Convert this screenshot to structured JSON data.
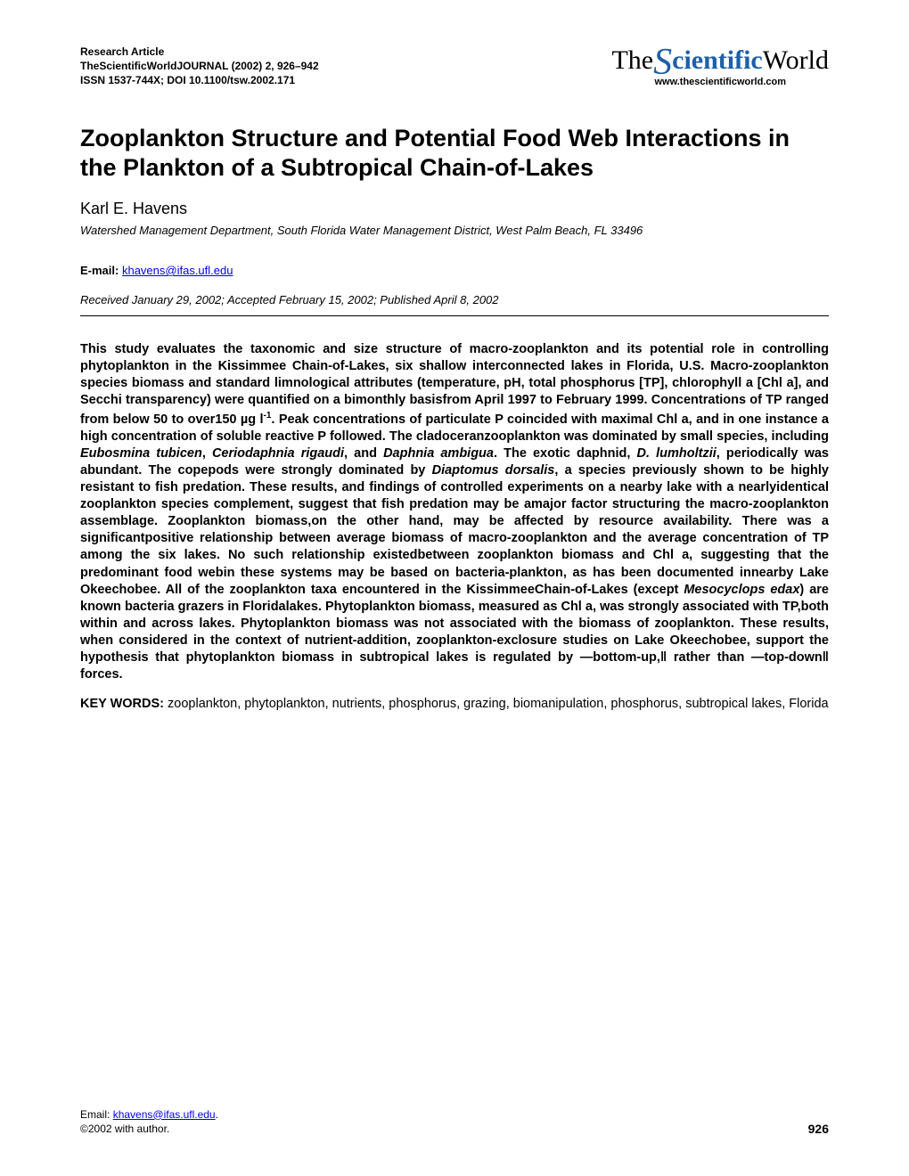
{
  "colors": {
    "text": "#000000",
    "link": "#0000ee",
    "logo_blue": "#1e5fa8",
    "background": "#ffffff"
  },
  "typography": {
    "body_family": "Arial, Helvetica, sans-serif",
    "title_size_pt": 20,
    "author_size_pt": 14,
    "body_size_pt": 11,
    "header_size_pt": 9
  },
  "header": {
    "article_type": "Research Article",
    "journal_line": "TheScientificWorldJOURNAL  (2002) 2, 926–942",
    "issn_line": "ISSN 1537-744X; DOI 10.1100/tsw.2002.171"
  },
  "logo": {
    "prefix": "The",
    "swash": "S",
    "mid": "cientific",
    "suffix": "World",
    "url": "www.thescientificworld.com"
  },
  "title": "Zooplankton Structure and Potential Food Web Interactions in the Plankton of a Subtropical Chain-of-Lakes",
  "author": "Karl E. Havens",
  "affiliation": "Watershed Management Department, South Florida Water Management District, West Palm Beach, FL 33496",
  "email": {
    "label": "E-mail: ",
    "address": "khavens@ifas.ufl.edu"
  },
  "dates": "Received January 29, 2002; Accepted February 15, 2002; Published April 8, 2002",
  "abstract": {
    "p1a": "This study evaluates the taxonomic and size structure of macro-zooplankton and its potential role in controlling phytoplankton in the Kissimmee Chain-of-Lakes, six shallow interconnected lakes in Florida, U.S. Macro-zooplankton species biomass and standard limnological attributes (temperature, pH, total phosphorus [TP], chlorophyll a [Chl a], and Secchi transparency) were quantified on a bimonthly basisfrom April 1997 to February 1999. Concentrations of TP ranged from below 50 to over150 µg l",
    "sup": "-1",
    "p1b": ". Peak concentrations of particulate P coincided with maximal Chl a, and in one instance a high concentration of soluble reactive P followed. The cladoceranzooplankton was dominated by small species, including ",
    "sp1": "Eubosmina tubicen",
    "c1": ", ",
    "sp2": "Ceriodaphnia rigaudi",
    "c2": ", and ",
    "sp3": "Daphnia ambigua",
    "p1c": ". The exotic daphnid, ",
    "sp4": "D. lumholtzii",
    "p1d": ", periodically was abundant. The copepods were strongly dominated by ",
    "sp5": "Diaptomus dorsalis",
    "p1e": ", a species previously shown to be highly resistant to fish predation. These results, and findings of controlled experiments on a nearby lake with a nearlyidentical zooplankton species complement, suggest that fish predation may be amajor factor structuring the macro-zooplankton assemblage. Zooplankton biomass,on the other hand, may be affected by resource availability. There was a significantpositive relationship between average biomass of macro-zooplankton and the average concentration of TP among the six lakes. No such relationship existedbetween zooplankton biomass and Chl a, suggesting that the predominant food webin these systems may be based on bacteria-plankton, as has been documented innearby Lake Okeechobee. All of the zooplankton taxa encountered in the KissimmeeChain-of-Lakes (except ",
    "sp6": "Mesocyclops edax",
    "p1f": ") are known bacteria grazers in Floridalakes. Phytoplankton biomass, measured as Chl a, was strongly associated with TP,both within and across lakes. Phytoplankton biomass was not associated with the biomass of zooplankton. These results, when considered in the context of nutrient-addition, zooplankton-exclosure studies on Lake Okeechobee, support the hypothesis that phytoplankton biomass in subtropical lakes is regulated by ―bottom-up,‖ rather than ―top-down‖ forces."
  },
  "keywords": {
    "label": "KEY WORDS:",
    "text": " zooplankton, phytoplankton, nutrients, phosphorus, grazing, biomanipulation, phosphorus, subtropical lakes, Florida"
  },
  "footer": {
    "email_label": "Email: ",
    "email": "khavens@ifas.ufl.edu",
    "period": ".",
    "copyright": "©2002 with author.",
    "page": "926"
  }
}
